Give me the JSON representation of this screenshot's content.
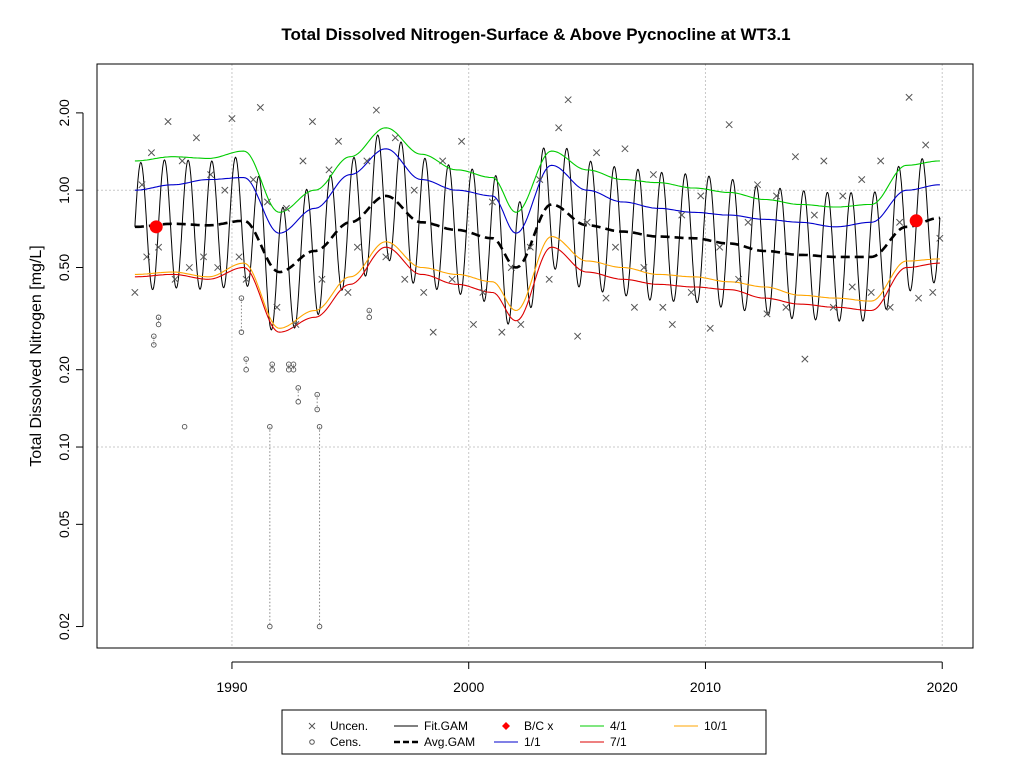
{
  "chart_data": {
    "type": "line",
    "title": "Total Dissolved Nitrogen-Surface & Above Pycnocline at WT3.1",
    "xlabel": "",
    "ylabel": "Total Dissolved Nitrogen [mg/L]",
    "y_scale": "log",
    "xlim": [
      1984.3,
      2021.3
    ],
    "ylim": [
      0.0165,
      3.1
    ],
    "x_ticks": [
      1990,
      2000,
      2010,
      2020
    ],
    "x_tick_labels": [
      "1990",
      "2000",
      "2010",
      "2020"
    ],
    "y_ticks": [
      0.02,
      0.05,
      0.1,
      0.2,
      0.5,
      1.0,
      2.0
    ],
    "y_tick_labels": [
      "0.02",
      "0.05",
      "0.10",
      "0.20",
      "0.50",
      "1.00",
      "2.00"
    ],
    "grid": true,
    "legend_position": "bottom",
    "series": [
      {
        "name": "4/1",
        "color": "#00cc00",
        "x": [
          1985.9,
          1987.5,
          1989.0,
          1990.5,
          1992.0,
          1993.5,
          1995.0,
          1996.5,
          1998.0,
          1999.5,
          2001.0,
          2002.0,
          2003.5,
          2005.0,
          2006.5,
          2008.0,
          2009.5,
          2011.0,
          2012.5,
          2014.0,
          2015.5,
          2017.0,
          2018.5,
          2019.9
        ],
        "y": [
          1.3,
          1.35,
          1.33,
          1.42,
          0.82,
          1.0,
          1.35,
          1.75,
          1.38,
          1.2,
          1.12,
          0.82,
          1.42,
          1.2,
          1.1,
          1.07,
          1.02,
          0.98,
          0.92,
          0.88,
          0.86,
          0.88,
          1.25,
          1.3
        ]
      },
      {
        "name": "1/1",
        "color": "#0000cc",
        "x": [
          1985.9,
          1987.5,
          1989.0,
          1990.5,
          1992.0,
          1993.5,
          1995.0,
          1996.5,
          1998.0,
          1999.5,
          2001.0,
          2002.0,
          2003.5,
          2005.0,
          2006.5,
          2008.0,
          2009.5,
          2011.0,
          2012.5,
          2014.0,
          2015.5,
          2017.0,
          2018.5,
          2019.9
        ],
        "y": [
          1.0,
          1.05,
          1.1,
          1.12,
          0.68,
          0.85,
          1.15,
          1.45,
          1.1,
          1.0,
          0.95,
          0.68,
          1.25,
          1.0,
          0.9,
          0.85,
          0.82,
          0.8,
          0.77,
          0.75,
          0.72,
          0.75,
          1.0,
          1.05
        ]
      },
      {
        "name": "10/1",
        "color": "#ffa500",
        "x": [
          1985.9,
          1987.5,
          1989.0,
          1990.5,
          1992.0,
          1993.5,
          1995.0,
          1996.5,
          1998.0,
          1999.5,
          2001.0,
          2002.0,
          2003.5,
          2005.0,
          2006.5,
          2008.0,
          2009.5,
          2011.0,
          2012.5,
          2014.0,
          2015.5,
          2017.0,
          2018.5,
          2019.9
        ],
        "y": [
          0.47,
          0.48,
          0.46,
          0.52,
          0.29,
          0.34,
          0.46,
          0.63,
          0.5,
          0.47,
          0.44,
          0.34,
          0.66,
          0.53,
          0.5,
          0.47,
          0.46,
          0.44,
          0.42,
          0.39,
          0.38,
          0.37,
          0.53,
          0.54
        ]
      },
      {
        "name": "7/1",
        "color": "#dd0000",
        "x": [
          1985.9,
          1987.5,
          1989.0,
          1990.5,
          1992.0,
          1993.5,
          1995.0,
          1996.5,
          1998.0,
          1999.5,
          2001.0,
          2002.0,
          2003.5,
          2005.0,
          2006.5,
          2008.0,
          2009.5,
          2011.0,
          2012.5,
          2014.0,
          2015.5,
          2017.0,
          2018.5,
          2019.9
        ],
        "y": [
          0.46,
          0.47,
          0.45,
          0.5,
          0.28,
          0.32,
          0.43,
          0.6,
          0.47,
          0.43,
          0.4,
          0.31,
          0.6,
          0.48,
          0.45,
          0.43,
          0.42,
          0.41,
          0.38,
          0.36,
          0.35,
          0.34,
          0.5,
          0.52
        ]
      },
      {
        "name": "Avg.GAM",
        "color": "#000000",
        "style": "dashed",
        "x": [
          1985.9,
          1987.5,
          1989.0,
          1990.5,
          1992.0,
          1993.5,
          1995.0,
          1996.5,
          1998.0,
          1999.5,
          2001.0,
          2002.0,
          2003.5,
          2005.0,
          2006.5,
          2008.0,
          2009.5,
          2011.0,
          2012.5,
          2014.0,
          2015.5,
          2017.0,
          2018.5,
          2019.9
        ],
        "y": [
          0.72,
          0.74,
          0.73,
          0.76,
          0.48,
          0.58,
          0.75,
          0.95,
          0.75,
          0.7,
          0.65,
          0.5,
          0.88,
          0.73,
          0.69,
          0.66,
          0.65,
          0.62,
          0.58,
          0.56,
          0.55,
          0.55,
          0.72,
          0.78
        ]
      }
    ],
    "fit_gam": {
      "name": "Fit.GAM",
      "color": "#000000",
      "x_start": 1985.9,
      "x_end": 2019.9,
      "period_years": 1.0,
      "peak_phase_year_fraction": 0.15,
      "center_series": "Avg.GAM",
      "log10_amplitude": 0.25
    },
    "bc_points": {
      "name": "B/C x",
      "color": "#ff0000",
      "x": [
        1986.8,
        2018.9
      ],
      "y": [
        0.72,
        0.76
      ]
    },
    "uncensored": {
      "name": "Uncen.",
      "color": "#555555",
      "x": [
        1985.9,
        1986.2,
        1986.4,
        1986.6,
        1986.9,
        1987.3,
        1987.6,
        1987.9,
        1988.2,
        1988.5,
        1988.8,
        1989.1,
        1989.4,
        1989.7,
        1990.0,
        1990.3,
        1990.6,
        1990.9,
        1991.2,
        1991.5,
        1991.9,
        1992.3,
        1992.7,
        1993.0,
        1993.4,
        1993.8,
        1994.1,
        1994.5,
        1994.9,
        1995.3,
        1995.7,
        1996.1,
        1996.5,
        1996.9,
        1997.3,
        1997.7,
        1998.1,
        1998.5,
        1998.9,
        1999.3,
        1999.7,
        2000.2,
        2000.6,
        2001.0,
        2001.4,
        2001.8,
        2002.2,
        2002.6,
        2003.0,
        2003.4,
        2003.8,
        2004.2,
        2004.6,
        2005.0,
        2005.4,
        2005.8,
        2006.2,
        2006.6,
        2007.0,
        2007.4,
        2007.8,
        2008.2,
        2008.6,
        2009.0,
        2009.4,
        2009.8,
        2010.2,
        2010.6,
        2011.0,
        2011.4,
        2011.8,
        2012.2,
        2012.6,
        2013.0,
        2013.4,
        2013.8,
        2014.2,
        2014.6,
        2015.0,
        2015.4,
        2015.8,
        2016.2,
        2016.6,
        2017.0,
        2017.4,
        2017.8,
        2018.2,
        2018.6,
        2019.0,
        2019.3,
        2019.6,
        2019.9
      ],
      "y": [
        0.4,
        1.05,
        0.55,
        1.4,
        0.6,
        1.85,
        0.45,
        1.3,
        0.5,
        1.6,
        0.55,
        1.15,
        0.5,
        1.0,
        1.9,
        0.55,
        0.45,
        1.1,
        2.1,
        0.9,
        0.35,
        0.85,
        0.3,
        1.3,
        1.85,
        0.45,
        1.2,
        1.55,
        0.4,
        0.6,
        1.3,
        2.05,
        0.55,
        1.6,
        0.45,
        1.0,
        0.4,
        0.28,
        1.3,
        0.45,
        1.55,
        0.3,
        0.4,
        0.9,
        0.28,
        0.5,
        0.3,
        0.6,
        1.1,
        0.45,
        1.75,
        2.25,
        0.27,
        0.75,
        1.4,
        0.38,
        0.6,
        1.45,
        0.35,
        0.5,
        1.15,
        0.35,
        0.3,
        0.8,
        0.4,
        0.95,
        0.29,
        0.6,
        1.8,
        0.45,
        0.75,
        1.05,
        0.33,
        0.95,
        0.35,
        1.35,
        0.22,
        0.8,
        1.3,
        0.35,
        0.95,
        0.42,
        1.1,
        0.4,
        1.3,
        0.35,
        0.75,
        2.3,
        0.38,
        1.5,
        0.4,
        0.65
      ]
    },
    "censored": {
      "name": "Cens.",
      "color": "#555555",
      "points": [
        {
          "x": 1986.7,
          "y": 0.27,
          "y_low": 0.25
        },
        {
          "x": 1986.9,
          "y": 0.32,
          "y_low": 0.3
        },
        {
          "x": 1988.0,
          "y": 0.12,
          "y_low": 0.12
        },
        {
          "x": 1990.4,
          "y": 0.38,
          "y_low": 0.28
        },
        {
          "x": 1990.6,
          "y": 0.22,
          "y_low": 0.2
        },
        {
          "x": 1991.6,
          "y": 0.12,
          "y_low": 0.02
        },
        {
          "x": 1991.7,
          "y": 0.21,
          "y_low": 0.2
        },
        {
          "x": 1992.4,
          "y": 0.21,
          "y_low": 0.2
        },
        {
          "x": 1992.6,
          "y": 0.21,
          "y_low": 0.2
        },
        {
          "x": 1992.8,
          "y": 0.17,
          "y_low": 0.15
        },
        {
          "x": 1993.6,
          "y": 0.16,
          "y_low": 0.14
        },
        {
          "x": 1993.7,
          "y": 0.12,
          "y_low": 0.02
        },
        {
          "x": 1995.8,
          "y": 0.34,
          "y_low": 0.32
        }
      ]
    },
    "legend": [
      [
        "Uncen.",
        "Fit.GAM",
        "B/C x",
        "4/1",
        "10/1"
      ],
      [
        "Cens.",
        "Avg.GAM",
        "1/1",
        "7/1",
        ""
      ]
    ]
  }
}
